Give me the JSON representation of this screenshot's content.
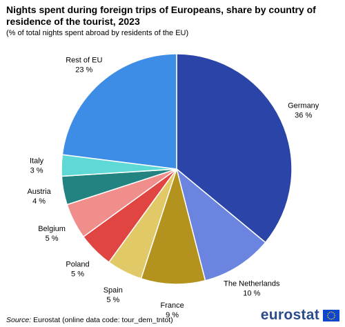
{
  "title": "Nights spent during foreign trips of Europeans, share by country of residence of the tourist, 2023",
  "subtitle": "(% of total nights  spent abroad by residents of the EU)",
  "source": {
    "label": "Source:",
    "text": "Eurostat (online data code: tour_dem_tntot)"
  },
  "brand": {
    "name": "eurostat",
    "flag_icon": "eu-flag-icon",
    "flag_color": "#0e47cb",
    "star_color": "#ffd617"
  },
  "chart_data": {
    "type": "pie",
    "title": "Nights spent during foreign trips of Europeans, share by country of residence of the tourist, 2023",
    "subtitle": "(% of total nights  spent abroad by residents of the EU)",
    "unit": "%",
    "start_angle_deg": 0,
    "direction": "clockwise",
    "slices": [
      {
        "name": "Germany",
        "value": 36,
        "label": "36 %",
        "color": "#2a44a8"
      },
      {
        "name": "The Netherlands",
        "value": 10,
        "label": "10 %",
        "color": "#6b84e0"
      },
      {
        "name": "France",
        "value": 9,
        "label": "9 %",
        "color": "#b3921e"
      },
      {
        "name": "Spain",
        "value": 5,
        "label": "5 %",
        "color": "#e2c968"
      },
      {
        "name": "Poland",
        "value": 5,
        "label": "5 %",
        "color": "#e14541"
      },
      {
        "name": "Belgium",
        "value": 5,
        "label": "5 %",
        "color": "#ef8e8a"
      },
      {
        "name": "Austria",
        "value": 4,
        "label": "4 %",
        "color": "#228381"
      },
      {
        "name": "Italy",
        "value": 3,
        "label": "3 %",
        "color": "#5fd9d5"
      },
      {
        "name": "Rest of EU",
        "value": 23,
        "label": "23 %",
        "color": "#3d8ce6"
      }
    ]
  }
}
